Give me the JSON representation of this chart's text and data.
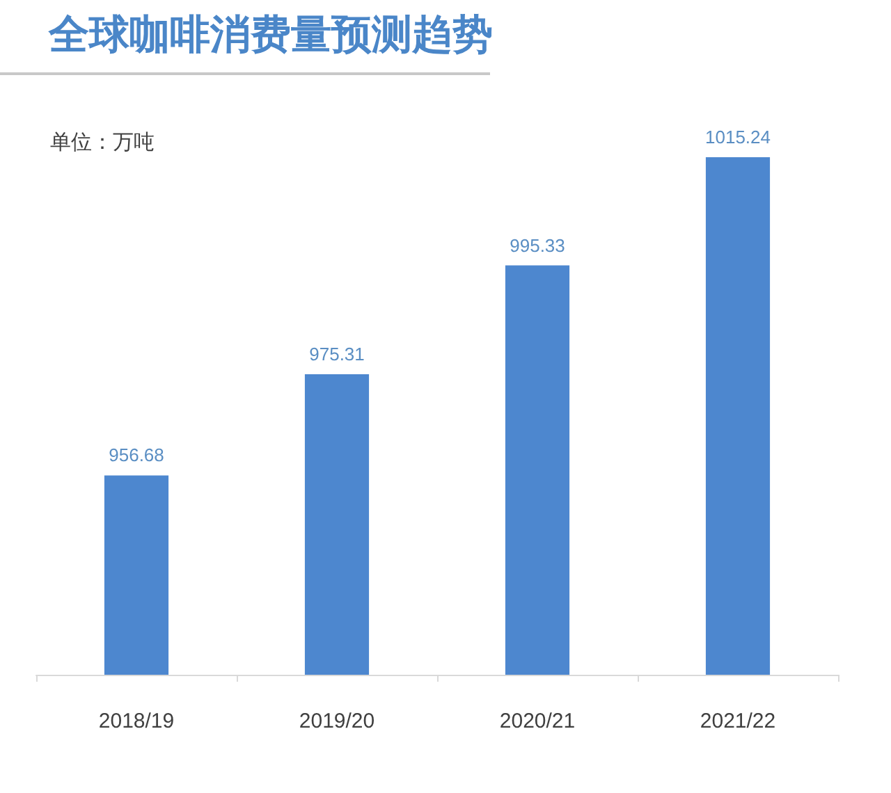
{
  "chart_data": {
    "type": "bar",
    "title": "全球咖啡消费量预测趋势",
    "subtitle": "单位：万吨",
    "categories": [
      "2018/19",
      "2019/20",
      "2020/21",
      "2021/22"
    ],
    "values": [
      956.68,
      975.31,
      995.33,
      1015.24
    ],
    "color": "#4d87cf",
    "ylim": [
      920,
      1015.24
    ],
    "tick_labels": "x",
    "data_labels": true
  }
}
